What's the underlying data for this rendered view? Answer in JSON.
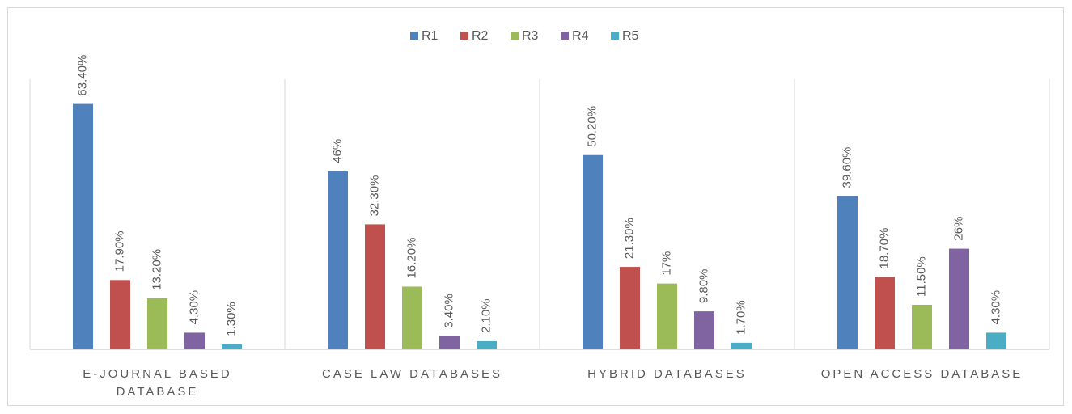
{
  "chart_data": {
    "type": "bar",
    "categories": [
      "E-JOURNAL BASED DATABASE",
      "CASE LAW DATABASES",
      "HYBRID DATABASES",
      "OPEN ACCESS DATABASE"
    ],
    "series": [
      {
        "name": "R1",
        "color": "#4f81bd",
        "values": [
          63.4,
          46,
          50.2,
          39.6
        ],
        "value_labels": [
          "63.40%",
          "46%",
          "50.20%",
          "39.60%"
        ]
      },
      {
        "name": "R2",
        "color": "#c0504d",
        "values": [
          17.9,
          32.3,
          21.3,
          18.7
        ],
        "value_labels": [
          "17.90%",
          "32.30%",
          "21.30%",
          "18.70%"
        ]
      },
      {
        "name": "R3",
        "color": "#9bbb59",
        "values": [
          13.2,
          16.2,
          17,
          11.5
        ],
        "value_labels": [
          "13.20%",
          "16.20%",
          "17%",
          "11.50%"
        ]
      },
      {
        "name": "R4",
        "color": "#8064a2",
        "values": [
          4.3,
          3.4,
          9.8,
          26
        ],
        "value_labels": [
          "4.30%",
          "3.40%",
          "9.80%",
          "26%"
        ]
      },
      {
        "name": "R5",
        "color": "#4bacc6",
        "values": [
          1.3,
          2.1,
          1.7,
          4.3
        ],
        "value_labels": [
          "1.30%",
          "2.10%",
          "1.70%",
          "4.30%"
        ]
      }
    ],
    "ylim": [
      0,
      70
    ],
    "legend": "top"
  }
}
